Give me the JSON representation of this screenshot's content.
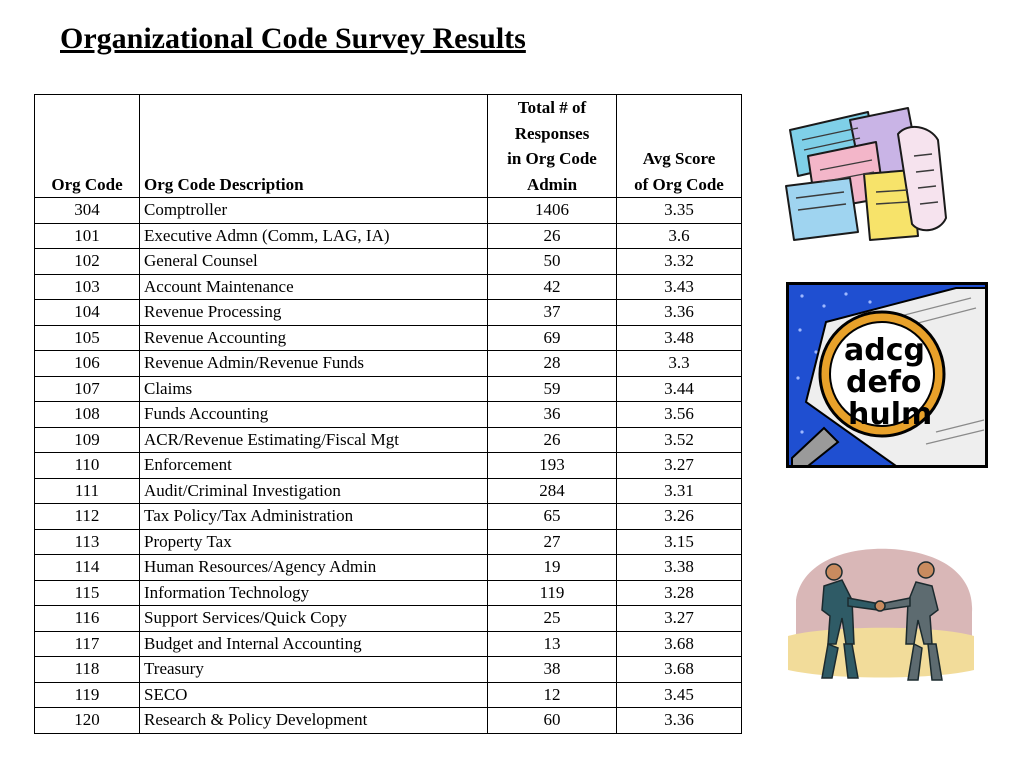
{
  "title": "Organizational Code Survey Results",
  "table": {
    "headers": {
      "org_code": "Org Code",
      "description": "Org Code Description",
      "total_l1": "Total # of",
      "total_l2": "Responses",
      "total_l3": "in Org Code",
      "total_l4": "Admin",
      "avg_l1": "Avg Score",
      "avg_l2": "of Org Code"
    },
    "rows": [
      {
        "code": "304",
        "desc": "Comptroller",
        "total": "1406",
        "avg": "3.35"
      },
      {
        "code": "101",
        "desc": "Executive Admn (Comm, LAG, IA)",
        "total": "26",
        "avg": "3.6"
      },
      {
        "code": "102",
        "desc": "General Counsel",
        "total": "50",
        "avg": "3.32"
      },
      {
        "code": "103",
        "desc": "Account Maintenance",
        "total": "42",
        "avg": "3.43"
      },
      {
        "code": "104",
        "desc": "Revenue Processing",
        "total": "37",
        "avg": "3.36"
      },
      {
        "code": "105",
        "desc": "Revenue Accounting",
        "total": "69",
        "avg": "3.48"
      },
      {
        "code": "106",
        "desc": "Revenue Admin/Revenue Funds",
        "total": "28",
        "avg": "3.3"
      },
      {
        "code": "107",
        "desc": "Claims",
        "total": "59",
        "avg": "3.44"
      },
      {
        "code": "108",
        "desc": "Funds Accounting",
        "total": "36",
        "avg": "3.56"
      },
      {
        "code": "109",
        "desc": "ACR/Revenue Estimating/Fiscal Mgt",
        "total": "26",
        "avg": "3.52"
      },
      {
        "code": "110",
        "desc": "Enforcement",
        "total": "193",
        "avg": "3.27"
      },
      {
        "code": "111",
        "desc": "Audit/Criminal Investigation",
        "total": "284",
        "avg": "3.31"
      },
      {
        "code": "112",
        "desc": "Tax Policy/Tax Administration",
        "total": "65",
        "avg": "3.26"
      },
      {
        "code": "113",
        "desc": "Property Tax",
        "total": "27",
        "avg": "3.15"
      },
      {
        "code": "114",
        "desc": "Human Resources/Agency Admin",
        "total": "19",
        "avg": "3.38"
      },
      {
        "code": "115",
        "desc": "Information Technology",
        "total": "119",
        "avg": "3.28"
      },
      {
        "code": "116",
        "desc": "Support Services/Quick Copy",
        "total": "25",
        "avg": "3.27"
      },
      {
        "code": "117",
        "desc": "Budget and Internal Accounting",
        "total": "13",
        "avg": "3.68"
      },
      {
        "code": "118",
        "desc": "Treasury",
        "total": "38",
        "avg": "3.68"
      },
      {
        "code": "119",
        "desc": "SECO",
        "total": "12",
        "avg": "3.45"
      },
      {
        "code": "120",
        "desc": "Research & Policy Development",
        "total": "60",
        "avg": "3.36"
      }
    ]
  },
  "clipart": {
    "papers": {
      "icon": "stack-of-papers-icon"
    },
    "magnifier": {
      "icon": "magnifying-glass-icon",
      "line1": "adcg",
      "line2": "defo",
      "line3": "hulm"
    },
    "handshake": {
      "icon": "business-handshake-icon"
    }
  },
  "colors": {
    "magnifier_bg": "#1f4fd1",
    "handshake_bg": "#d9b7b7",
    "handshake_floor": "#f2dc9a"
  }
}
